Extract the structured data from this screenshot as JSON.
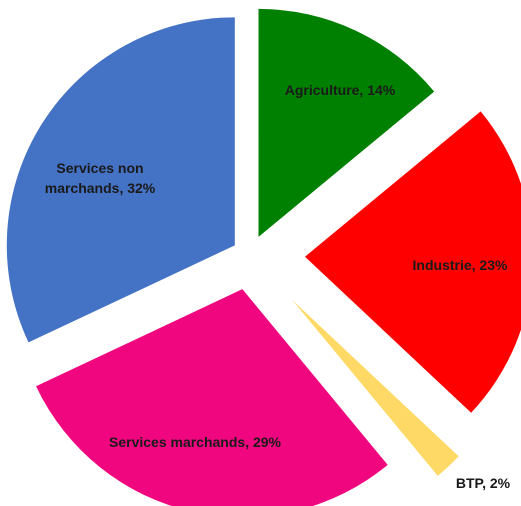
{
  "chart_data": {
    "type": "pie",
    "values": [
      14,
      23,
      2,
      29,
      32
    ],
    "value_labels": [
      "Agriculture, 14%",
      "Industrie, 23%",
      "BTP, 2%",
      "Services marchands, 29%",
      "Services non marchands, 32%"
    ],
    "colors": [
      "#008000",
      "#ff0000",
      "#ffd966",
      "#f0077f",
      "#4472c4"
    ]
  }
}
